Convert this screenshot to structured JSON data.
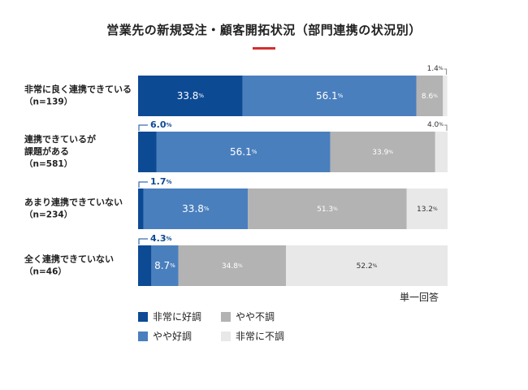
{
  "chart_data": {
    "type": "bar",
    "orientation": "horizontal",
    "stacked": true,
    "title": "営業先の新規受注・顧客開拓状況（部門連携の状況別）",
    "note": "単一回答",
    "categories": [
      {
        "label_lines": [
          "非常に良く連携できている"
        ],
        "n": "（n=139）"
      },
      {
        "label_lines": [
          "連携できているが",
          "課題がある"
        ],
        "n": "（n=581）"
      },
      {
        "label_lines": [
          "あまり連携できていない"
        ],
        "n": "（n=234）"
      },
      {
        "label_lines": [
          "全く連携できていない"
        ],
        "n": "（n=46）"
      }
    ],
    "series": [
      {
        "name": "非常に好調",
        "color": "#0d4a94",
        "values": [
          33.8,
          6.0,
          1.7,
          4.3
        ],
        "labels": [
          "33.8",
          "6.0",
          "1.7",
          "4.3"
        ]
      },
      {
        "name": "やや好調",
        "color": "#4a7fbe",
        "values": [
          56.1,
          56.1,
          33.8,
          8.7
        ],
        "labels": [
          "56.1",
          "56.1",
          "33.8",
          "8.7"
        ]
      },
      {
        "name": "やや不調",
        "color": "#b3b3b3",
        "values": [
          8.6,
          33.9,
          51.3,
          34.8
        ],
        "labels": [
          "8.6",
          "33.9",
          "51.3",
          "34.8"
        ]
      },
      {
        "name": "非常に不調",
        "color": "#e8e8e8",
        "values": [
          1.4,
          4.0,
          13.2,
          52.2
        ],
        "labels": [
          "1.4",
          "4.0",
          "13.2",
          "52.2"
        ]
      }
    ],
    "xlim": [
      0,
      100
    ],
    "unit": "%",
    "grid": false,
    "legend_position": "bottom-left",
    "accent_color": "#d32f2f"
  }
}
